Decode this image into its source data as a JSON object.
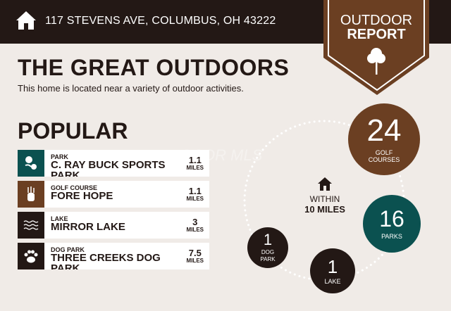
{
  "header": {
    "address": "117 STEVENS AVE, COLUMBUS, OH 43222",
    "icon": "home-icon"
  },
  "badge": {
    "line1": "OUTDOOR",
    "line2": "REPORT",
    "icon": "tree-icon"
  },
  "title": "THE GREAT OUTDOORS",
  "subtitle": "This home is located near a variety of outdoor activities.",
  "popular": {
    "heading": "POPULAR",
    "items": [
      {
        "category": "PARK",
        "name": "C. RAY BUCK SPORTS PARK",
        "distance": "1.1",
        "unit": "MILES",
        "icon": "park-icon",
        "color": "#0b5150"
      },
      {
        "category": "GOLF COURSE",
        "name": "FORE HOPE",
        "distance": "1.1",
        "unit": "MILES",
        "icon": "golf-bag-icon",
        "color": "#6b3f22"
      },
      {
        "category": "LAKE",
        "name": "MIRROR LAKE",
        "distance": "3",
        "unit": "MILES",
        "icon": "waves-icon",
        "color": "#231815"
      },
      {
        "category": "DOG PARK",
        "name": "THREE CREEKS DOG PARK",
        "distance": "7.5",
        "unit": "MILES",
        "icon": "paw-icon",
        "color": "#231815"
      }
    ]
  },
  "watermark": "OCOR MLS",
  "summary": {
    "within": "WITHIN",
    "radius": "10 MILES",
    "bubbles": [
      {
        "count": "24",
        "label": "GOLF COURSES",
        "color": "#6b3f22"
      },
      {
        "count": "16",
        "label": "PARKS",
        "color": "#0b5150"
      },
      {
        "count": "1",
        "label": "LAKE",
        "color": "#231815"
      },
      {
        "count": "1",
        "label": "DOG PARK",
        "color": "#231815"
      }
    ]
  }
}
